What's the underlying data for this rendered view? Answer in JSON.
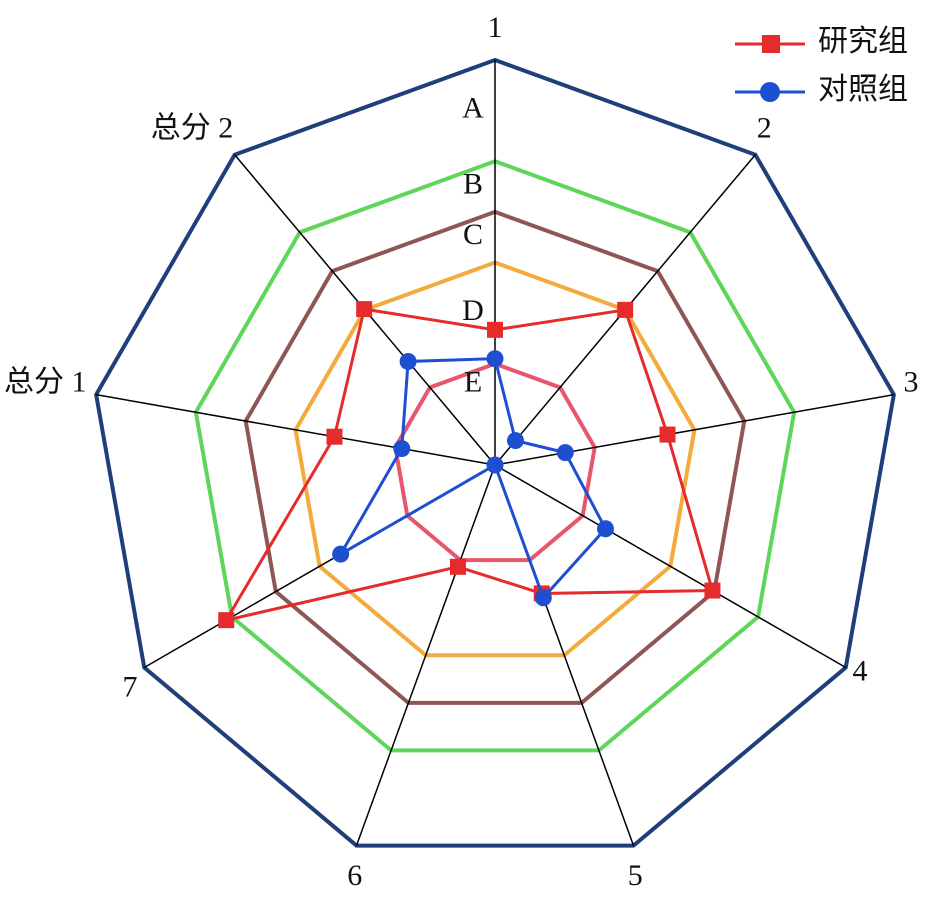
{
  "chart_data": {
    "type": "radar",
    "categories": [
      "1",
      "2",
      "3",
      "4",
      "5",
      "6",
      "7",
      "总分 1",
      "总分 2"
    ],
    "rlim": [
      0,
      8
    ],
    "rticks": [
      2,
      4,
      5,
      6,
      8
    ],
    "ring_colors": [
      "#e8566e",
      "#f2ab3c",
      "#8f5656",
      "#5fd65a",
      "#1f3f7a"
    ],
    "grades": [
      "E",
      "D",
      "C",
      "B",
      "A"
    ],
    "series": [
      {
        "name": "研究组",
        "color": "#e52b2b",
        "marker": "square",
        "values": [
          2.67,
          4.0,
          3.46,
          4.96,
          2.7,
          2.14,
          6.13,
          3.22,
          4.02
        ]
      },
      {
        "name": "对照组",
        "color": "#1f4fd1",
        "marker": "circle",
        "values": [
          2.1,
          0.63,
          1.41,
          2.52,
          2.79,
          0,
          3.52,
          1.87,
          2.67
        ]
      }
    ],
    "legend": "upper right"
  }
}
